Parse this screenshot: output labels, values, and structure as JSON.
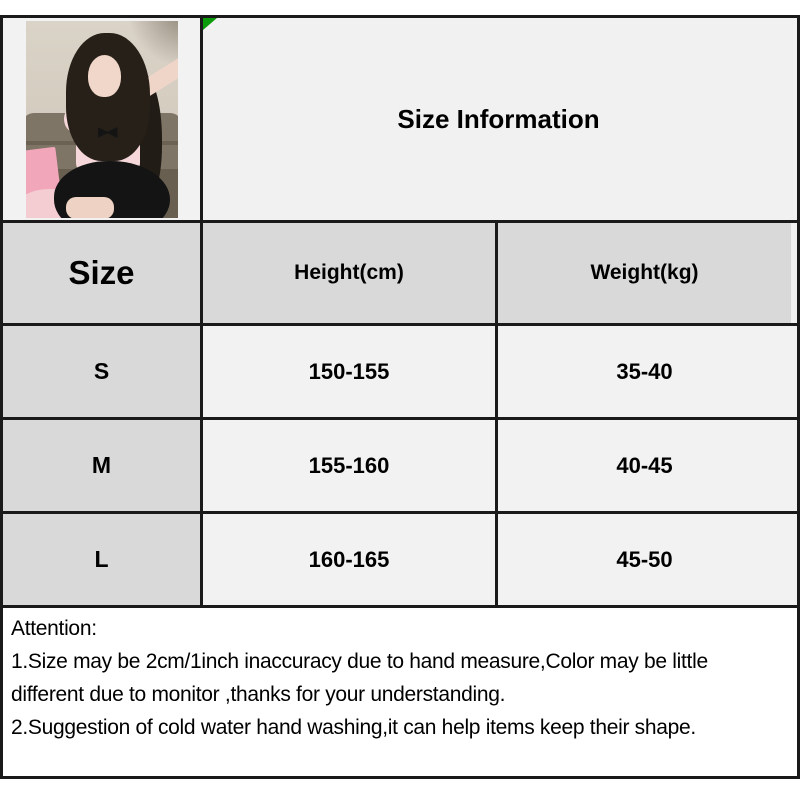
{
  "title": {
    "text": "Size Information"
  },
  "table": {
    "columns": [
      "Size",
      "Height(cm)",
      "Weight(kg)"
    ],
    "rows": [
      {
        "size": "S",
        "height": "150-155",
        "weight": "35-40"
      },
      {
        "size": "M",
        "height": "155-160",
        "weight": "40-45"
      },
      {
        "size": "L",
        "height": "160-165",
        "weight": "45-50"
      }
    ]
  },
  "attention": {
    "lines": [
      "Attention:",
      "1.Size may be 2cm/1inch inaccuracy due to hand measure,Color may be little",
      "different due to monitor ,thanks for your understanding.",
      "2.Suggestion of cold water hand washing,it can help items keep their shape."
    ]
  },
  "colors": {
    "border": "#1a1a1a",
    "header_bg": "#d9d9d9",
    "cell_bg": "#f2f2f2",
    "attention_bg": "#ffffff",
    "corner_marker_green": "#0a9a0a",
    "page_bg": "#ffffff"
  }
}
